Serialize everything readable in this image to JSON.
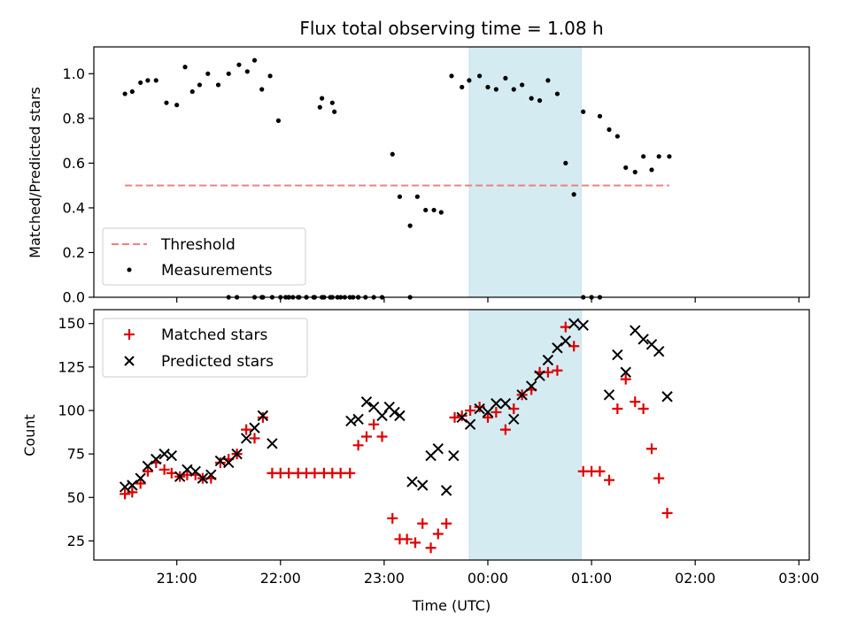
{
  "title": "Flux total observing time = 1.08 h",
  "colors": {
    "threshold": "#f08080",
    "measurements": "#000000",
    "matched": "#e00000",
    "predicted": "#000000",
    "highlight": "#add8e6"
  },
  "chart_data": [
    {
      "type": "scatter",
      "panel": "top",
      "ylabel": "Matched/Predicted stars",
      "ylim": [
        0,
        1.12
      ],
      "xlim": [
        -2.8,
        4.1
      ],
      "yticks": [
        "0.0",
        "0.2",
        "0.4",
        "0.6",
        "0.8",
        "1.0"
      ],
      "highlight_span": [
        0.82,
        1.9
      ],
      "legend": {
        "placement": "lower-left",
        "threshold_label": "Threshold",
        "measurements_label": "Measurements"
      },
      "threshold": {
        "name": "Threshold",
        "value": 0.5,
        "x": [
          -2.5,
          2.75
        ]
      },
      "series": [
        {
          "name": "Measurements",
          "x": [
            -2.5,
            -2.43,
            -2.35,
            -2.28,
            -2.2,
            -2.1,
            -2.0,
            -1.92,
            -1.85,
            -1.78,
            -1.7,
            -1.6,
            -1.5,
            -1.4,
            -1.32,
            -1.25,
            -1.18,
            -1.1,
            -1.02,
            -0.95,
            -0.88,
            -0.82,
            -0.75,
            -0.68,
            -0.6,
            -0.52,
            -0.45,
            -0.38,
            -0.3,
            -0.25,
            -0.18,
            -0.1,
            -0.02,
            -1.18,
            -0.92,
            -0.62,
            -0.6,
            -0.5,
            -0.48,
            0.08,
            0.15,
            0.25,
            0.32,
            0.4,
            0.48,
            0.55,
            0.65,
            0.75,
            0.82,
            0.92,
            1.0,
            1.08,
            1.17,
            1.25,
            1.33,
            1.42,
            1.5,
            1.58,
            1.67,
            1.75,
            1.83,
            1.92,
            2.08,
            2.17,
            2.25,
            2.33,
            2.42,
            2.5,
            2.58,
            2.65,
            2.75,
            -1.5,
            -1.42,
            -1.25,
            -1.17,
            -1.08,
            -1.0,
            -0.92,
            -0.83,
            -0.75,
            -0.67,
            -0.58,
            -0.5,
            -0.42,
            -0.33,
            -0.25,
            0.25,
            1.92,
            2.0,
            2.08
          ],
          "y": [
            0.91,
            0.92,
            0.96,
            0.97,
            0.97,
            0.87,
            0.86,
            1.03,
            0.92,
            0.95,
            1.0,
            0.95,
            1.0,
            1.04,
            1.01,
            1.06,
            0.93,
            0.99,
            0.79,
            0.0,
            0.0,
            0.0,
            0.0,
            0.0,
            0.0,
            0.0,
            0.0,
            0.0,
            0.0,
            0.0,
            0.0,
            0.0,
            0.0,
            0.0,
            0.0,
            0.85,
            0.89,
            0.87,
            0.83,
            0.64,
            0.45,
            0.32,
            0.45,
            0.39,
            0.39,
            0.38,
            0.99,
            0.94,
            0.97,
            0.99,
            0.94,
            0.93,
            0.98,
            0.93,
            0.95,
            0.89,
            0.88,
            0.97,
            0.91,
            0.6,
            0.46,
            0.83,
            0.81,
            0.75,
            0.72,
            0.58,
            0.56,
            0.63,
            0.57,
            0.63,
            0.63,
            0.0,
            0.0,
            0.0,
            0.0,
            0.0,
            0.0,
            0.0,
            0.0,
            0.0,
            0.0,
            0.0,
            0.0,
            0.0,
            0.0,
            0.0,
            0.0,
            0.0,
            0.0,
            0.0
          ]
        }
      ]
    },
    {
      "type": "scatter",
      "panel": "bottom",
      "xlabel": "Time (UTC)",
      "ylabel": "Count",
      "ylim": [
        14,
        158
      ],
      "xlim": [
        -2.8,
        4.1
      ],
      "xticks": [
        "21:00",
        "22:00",
        "23:00",
        "00:00",
        "01:00",
        "02:00",
        "03:00"
      ],
      "xtick_values": [
        -2,
        -1,
        0,
        1,
        2,
        3,
        4
      ],
      "yticks": [
        "25",
        "50",
        "75",
        "100",
        "125",
        "150"
      ],
      "highlight_span": [
        0.82,
        1.9
      ],
      "legend": {
        "placement": "upper-left"
      },
      "series": [
        {
          "name": "Matched stars",
          "x": [
            -2.5,
            -2.43,
            -2.35,
            -2.28,
            -2.2,
            -2.12,
            -2.05,
            -1.97,
            -1.9,
            -1.82,
            -1.75,
            -1.67,
            -1.58,
            -1.5,
            -1.42,
            -1.33,
            -1.25,
            -1.17,
            -1.08,
            -1.0,
            -0.92,
            -0.83,
            -0.75,
            -0.67,
            -0.58,
            -0.5,
            -0.42,
            -0.33,
            -0.25,
            -0.17,
            -0.1,
            -0.02,
            0.08,
            0.15,
            0.22,
            0.3,
            0.37,
            0.45,
            0.52,
            0.6,
            0.68,
            0.75,
            0.83,
            0.92,
            1.0,
            1.08,
            1.17,
            1.25,
            1.33,
            1.42,
            1.5,
            1.58,
            1.67,
            1.75,
            1.83,
            1.92,
            2.0,
            2.08,
            2.17,
            2.25,
            2.33,
            2.42,
            2.5,
            2.58,
            2.65,
            2.73
          ],
          "y": [
            52,
            53,
            58,
            65,
            70,
            66,
            64,
            62,
            63,
            63,
            61,
            61,
            70,
            72,
            75,
            89,
            84,
            96,
            64,
            64,
            64,
            64,
            64,
            64,
            64,
            64,
            64,
            64,
            80,
            85,
            92,
            85,
            38,
            26,
            26,
            24,
            35,
            21,
            29,
            35,
            96,
            97,
            100,
            102,
            96,
            99,
            89,
            101,
            109,
            112,
            122,
            122,
            123,
            148,
            137,
            65,
            65,
            65,
            60,
            101,
            118,
            105,
            101,
            78,
            61,
            41
          ]
        },
        {
          "name": "Predicted stars",
          "x": [
            -2.5,
            -2.43,
            -2.35,
            -2.28,
            -2.2,
            -2.12,
            -2.05,
            -1.97,
            -1.9,
            -1.82,
            -1.75,
            -1.67,
            -1.58,
            -1.5,
            -1.42,
            -1.33,
            -1.25,
            -1.17,
            -1.08,
            -0.32,
            -0.25,
            -0.17,
            -0.1,
            -0.02,
            0.05,
            0.1,
            0.15,
            0.27,
            0.37,
            0.45,
            0.52,
            0.6,
            0.67,
            0.75,
            0.83,
            0.92,
            1.0,
            1.08,
            1.17,
            1.25,
            1.33,
            1.42,
            1.5,
            1.58,
            1.67,
            1.75,
            1.83,
            1.92,
            2.17,
            2.25,
            2.33,
            2.42,
            2.5,
            2.58,
            2.65,
            2.73
          ],
          "y": [
            56,
            57,
            61,
            68,
            72,
            75,
            74,
            62,
            66,
            65,
            61,
            63,
            71,
            70,
            75,
            84,
            90,
            97,
            81,
            94,
            95,
            105,
            102,
            97,
            102,
            99,
            97,
            59,
            57,
            74,
            78,
            54,
            74,
            96,
            92,
            101,
            99,
            104,
            104,
            95,
            109,
            114,
            120,
            129,
            136,
            140,
            150,
            149,
            109,
            132,
            122,
            146,
            141,
            138,
            134,
            108
          ]
        }
      ]
    }
  ]
}
